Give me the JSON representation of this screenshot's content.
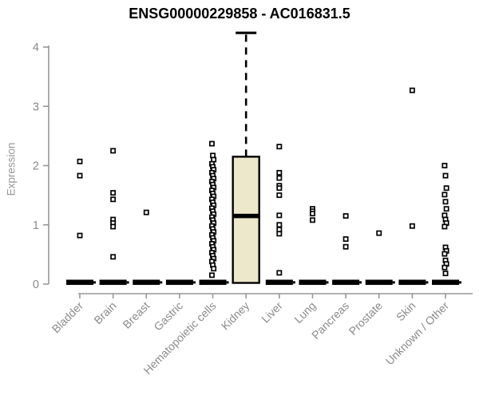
{
  "chart_data": {
    "type": "boxplot",
    "title": "ENSG00000229858 - AC016831.5",
    "ylabel": "Expression",
    "xlabel": "",
    "ylim": [
      0,
      4
    ],
    "yticks": [
      0,
      1,
      2,
      3,
      4
    ],
    "grid": false,
    "legend": "none",
    "categories": [
      "Bladder",
      "Brain",
      "Breast",
      "Gastric",
      "Hematopoietic cells",
      "Kidney",
      "Liver",
      "Lung",
      "Pancreas",
      "Prostate",
      "Skin",
      "Unknown / Other"
    ],
    "series": [
      {
        "name": "Bladder",
        "zero_bar": true,
        "points": [
          2.07,
          1.83,
          0.82
        ]
      },
      {
        "name": "Brain",
        "zero_bar": true,
        "points": [
          2.25,
          1.54,
          1.43,
          1.09,
          1.03,
          0.97,
          0.46
        ]
      },
      {
        "name": "Breast",
        "zero_bar": true,
        "points": [
          1.21
        ]
      },
      {
        "name": "Gastric",
        "zero_bar": true,
        "points": []
      },
      {
        "name": "Hematopoietic cells",
        "zero_bar": true,
        "points": [
          2.37,
          2.17,
          2.1,
          2.03,
          1.98,
          1.93,
          1.88,
          1.83,
          1.78,
          1.73,
          1.68,
          1.63,
          1.58,
          1.53,
          1.48,
          1.43,
          1.38,
          1.33,
          1.28,
          1.23,
          1.18,
          1.13,
          1.08,
          1.03,
          0.98,
          0.93,
          0.88,
          0.83,
          0.78,
          0.73,
          0.68,
          0.63,
          0.58,
          0.53,
          0.48,
          0.43,
          0.38,
          0.32,
          0.26,
          0.15
        ]
      },
      {
        "name": "Kidney",
        "zero_bar": false,
        "points": []
      },
      {
        "name": "Liver",
        "zero_bar": true,
        "points": [
          2.32,
          1.88,
          1.79,
          1.66,
          1.62,
          1.5,
          1.16,
          1.0,
          0.92,
          0.85,
          0.19
        ]
      },
      {
        "name": "Lung",
        "zero_bar": true,
        "points": [
          1.27,
          1.23,
          1.19,
          1.08
        ]
      },
      {
        "name": "Pancreas",
        "zero_bar": true,
        "points": [
          1.15,
          0.76,
          0.63
        ]
      },
      {
        "name": "Prostate",
        "zero_bar": true,
        "points": [
          0.86
        ]
      },
      {
        "name": "Skin",
        "zero_bar": true,
        "points": [
          3.27,
          0.98
        ]
      },
      {
        "name": "Unknown / Other",
        "zero_bar": true,
        "points": [
          2.0,
          1.83,
          1.62,
          1.51,
          1.39,
          1.27,
          1.16,
          1.09,
          1.03,
          0.97,
          0.62,
          0.56,
          0.51,
          0.4,
          0.34,
          0.28,
          0.18
        ]
      }
    ],
    "boxes": [
      {
        "category": "Kidney",
        "whisker_low": 0.02,
        "q1": 0.02,
        "median": 1.15,
        "q3": 2.15,
        "whisker_high": 4.24
      }
    ],
    "colors": {
      "box_fill": "#ede7cb",
      "box_stroke": "#000000",
      "median": "#000000",
      "point_stroke": "#000000",
      "point_fill": "#ffffff",
      "zero_bar": "#000000",
      "axis": "#979797",
      "tick_label": "#8a8a8a",
      "title": "#000000"
    }
  }
}
